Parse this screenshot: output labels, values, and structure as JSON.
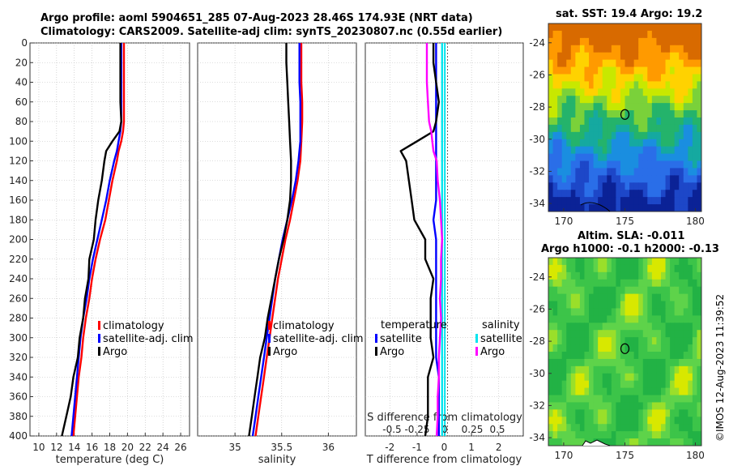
{
  "header": {
    "title_line1": "Argo profile: aoml 5904651_285 07-Aug-2023 28.46S 174.93E (NRT data)",
    "title_line2": "Climatology: CARS2009. Satellite-adj clim: synTS_20230807.nc (0.55d earlier)"
  },
  "maps": {
    "sst_title": "sat. SST: 19.4 Argo: 19.2",
    "sla_title_1": "Altim. SLA: -0.011",
    "sla_title_2": "Argo h1000: -0.1 h2000: -0.13",
    "lon_ticks": [
      "170",
      "175",
      "180"
    ],
    "lat_ticks": [
      "-24",
      "-26",
      "-28",
      "-30",
      "-32",
      "-34"
    ],
    "marker": {
      "lon": 175,
      "lat": -28.46
    }
  },
  "credit": "©IMOS 12-Aug-2023 11:39:52",
  "legends": {
    "temp": [
      "climatology",
      "satellite-adj. clim",
      "Argo"
    ],
    "sal": [
      "climatology",
      "satellite-adj. clim",
      "Argo"
    ],
    "diff_temp_header": "temperature",
    "diff_sal_header": "salinity",
    "diff_temp": [
      "satellite",
      "Argo"
    ],
    "diff_sal": [
      "satellite",
      "Argo"
    ]
  },
  "colors": {
    "climatology": "#ff0000",
    "satellite": "#0000ff",
    "argo": "#000000",
    "sal_satellite": "#00e5ee",
    "sal_argo": "#ff00ff"
  },
  "chart_data": [
    {
      "type": "line",
      "xlabel": "temperature (deg C)",
      "ylabel": "",
      "xlim": [
        9,
        27
      ],
      "ylim": [
        400,
        0
      ],
      "xticks": [
        "10",
        "12",
        "14",
        "16",
        "18",
        "20",
        "22",
        "24",
        "26"
      ],
      "yticks": [
        "0",
        "20",
        "40",
        "60",
        "80",
        "100",
        "120",
        "140",
        "160",
        "180",
        "200",
        "220",
        "240",
        "260",
        "280",
        "300",
        "320",
        "340",
        "360",
        "380",
        "400"
      ],
      "depth": [
        0,
        20,
        40,
        60,
        80,
        90,
        100,
        110,
        120,
        140,
        160,
        180,
        200,
        220,
        240,
        260,
        280,
        300,
        320,
        340,
        360,
        380,
        400
      ],
      "series": [
        {
          "name": "climatology",
          "values": [
            19.6,
            19.6,
            19.6,
            19.6,
            19.6,
            19.5,
            19.3,
            19.0,
            18.8,
            18.3,
            17.9,
            17.5,
            16.9,
            16.4,
            16.0,
            15.7,
            15.3,
            15.0,
            14.8,
            14.5,
            14.3,
            14.1,
            13.9
          ]
        },
        {
          "name": "satellite-adj. clim",
          "values": [
            19.3,
            19.3,
            19.3,
            19.3,
            19.3,
            19.2,
            19.0,
            18.8,
            18.5,
            18.0,
            17.6,
            17.1,
            16.6,
            16.1,
            15.7,
            15.4,
            15.0,
            14.7,
            14.5,
            14.3,
            14.1,
            13.9,
            13.7
          ]
        },
        {
          "name": "Argo",
          "values": [
            19.2,
            19.2,
            19.2,
            19.2,
            19.3,
            19.1,
            18.3,
            17.6,
            17.4,
            17.1,
            16.7,
            16.4,
            16.2,
            15.7,
            15.6,
            15.2,
            15.0,
            14.6,
            14.4,
            13.9,
            13.6,
            13.1,
            12.6
          ]
        }
      ]
    },
    {
      "type": "line",
      "xlabel": "salinity",
      "ylabel": "",
      "xlim": [
        34.6,
        36.3
      ],
      "ylim": [
        400,
        0
      ],
      "xticks": [
        "35",
        "35.5",
        "36"
      ],
      "depth": [
        0,
        20,
        40,
        60,
        80,
        100,
        120,
        140,
        160,
        180,
        200,
        220,
        240,
        260,
        280,
        300,
        320,
        340,
        360,
        380,
        400
      ],
      "series": [
        {
          "name": "climatology",
          "values": [
            35.71,
            35.71,
            35.71,
            35.72,
            35.72,
            35.71,
            35.7,
            35.67,
            35.63,
            35.59,
            35.54,
            35.5,
            35.46,
            35.43,
            35.4,
            35.37,
            35.34,
            35.31,
            35.28,
            35.25,
            35.22
          ]
        },
        {
          "name": "satellite-adj. clim",
          "values": [
            35.69,
            35.69,
            35.69,
            35.7,
            35.7,
            35.7,
            35.68,
            35.65,
            35.61,
            35.56,
            35.51,
            35.47,
            35.43,
            35.4,
            35.37,
            35.34,
            35.31,
            35.28,
            35.25,
            35.22,
            35.19
          ]
        },
        {
          "name": "Argo",
          "values": [
            35.55,
            35.55,
            35.56,
            35.57,
            35.58,
            35.59,
            35.6,
            35.6,
            35.59,
            35.56,
            35.52,
            35.47,
            35.43,
            35.39,
            35.35,
            35.32,
            35.27,
            35.24,
            35.21,
            35.18,
            35.15
          ]
        }
      ]
    },
    {
      "type": "line",
      "xlabel": "T difference from climatology",
      "top_label": "S difference from climatology",
      "xlim": [
        -2.9,
        2.9
      ],
      "ylim": [
        400,
        0
      ],
      "xticks": [
        "-2",
        "-1",
        "0",
        "1",
        "2"
      ],
      "top_xticks": [
        "-0.5",
        "-0.25",
        "0",
        "0.25",
        "0.5"
      ],
      "zero_lines": [
        -0.02,
        0.0
      ],
      "depth": [
        0,
        20,
        40,
        60,
        80,
        90,
        100,
        110,
        120,
        140,
        160,
        180,
        200,
        220,
        240,
        260,
        280,
        300,
        320,
        340,
        360,
        380,
        400
      ],
      "series": [
        {
          "name": "temperature satellite",
          "values": [
            -0.3,
            -0.3,
            -0.3,
            -0.3,
            -0.3,
            -0.3,
            -0.3,
            -0.3,
            -0.3,
            -0.3,
            -0.3,
            -0.4,
            -0.3,
            -0.3,
            -0.3,
            -0.3,
            -0.3,
            -0.3,
            -0.3,
            -0.2,
            -0.2,
            -0.2,
            -0.2
          ]
        },
        {
          "name": "temperature Argo",
          "values": [
            -0.4,
            -0.4,
            -0.3,
            -0.2,
            -0.3,
            -0.4,
            -1.0,
            -1.6,
            -1.4,
            -1.3,
            -1.2,
            -1.1,
            -0.7,
            -0.7,
            -0.4,
            -0.5,
            -0.5,
            -0.5,
            -0.4,
            -0.6,
            -0.6,
            -0.6,
            -0.7
          ]
        },
        {
          "name": "salinity satellite",
          "values": [
            -0.02,
            -0.02,
            -0.02,
            -0.02,
            -0.02,
            -0.02,
            -0.02,
            -0.02,
            -0.02,
            -0.02,
            -0.02,
            -0.02,
            -0.02,
            -0.02,
            -0.02,
            -0.02,
            -0.02,
            -0.02,
            -0.02,
            -0.02,
            -0.02,
            -0.02,
            -0.02
          ]
        },
        {
          "name": "salinity Argo",
          "values": [
            -0.16,
            -0.16,
            -0.16,
            -0.15,
            -0.14,
            -0.12,
            -0.11,
            -0.1,
            -0.07,
            -0.06,
            -0.04,
            -0.03,
            -0.02,
            -0.03,
            -0.03,
            -0.04,
            -0.03,
            -0.04,
            -0.05,
            -0.05,
            -0.06,
            -0.06,
            -0.07
          ]
        }
      ]
    }
  ]
}
